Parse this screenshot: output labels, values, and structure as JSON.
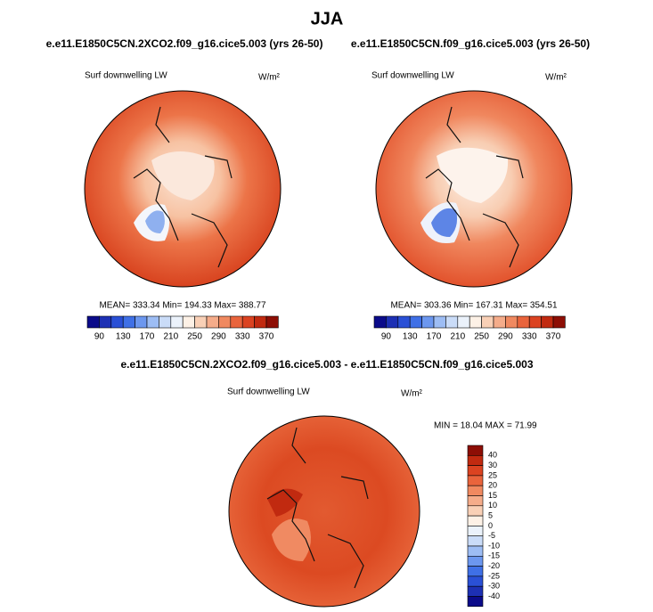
{
  "title": "JJA",
  "panels": [
    {
      "title": "e.e11.E1850C5CN.2XCO2.f09_g16.cice5.003 (yrs 26-50)",
      "variable": "Surf downwelling LW",
      "units": "W/m²",
      "stats": "MEAN= 333.34  Min= 194.33  Max= 388.77",
      "colorbar": {
        "labels": [
          "90",
          "130",
          "170",
          "210",
          "250",
          "290",
          "330",
          "370"
        ],
        "colors": [
          "#0b0b8a",
          "#1d30b4",
          "#2a50d6",
          "#3f70e6",
          "#6c97ef",
          "#9dbdf4",
          "#cadcf8",
          "#ebf2fb",
          "#fdf1e6",
          "#f9d0b6",
          "#f5ac8a",
          "#f08960",
          "#e9643c",
          "#db4321",
          "#c12a10",
          "#8d0e05"
        ]
      }
    },
    {
      "title": "e.e11.E1850C5CN.f09_g16.cice5.003 (yrs 26-50)",
      "variable": "Surf downwelling LW",
      "units": "W/m²",
      "stats": "MEAN= 303.36  Min= 167.31  Max= 354.51",
      "colorbar": {
        "labels": [
          "90",
          "130",
          "170",
          "210",
          "250",
          "290",
          "330",
          "370"
        ],
        "colors": [
          "#0b0b8a",
          "#1d30b4",
          "#2a50d6",
          "#3f70e6",
          "#6c97ef",
          "#9dbdf4",
          "#cadcf8",
          "#ebf2fb",
          "#fdf1e6",
          "#f9d0b6",
          "#f5ac8a",
          "#f08960",
          "#e9643c",
          "#db4321",
          "#c12a10",
          "#8d0e05"
        ]
      }
    },
    {
      "title": "e.e11.E1850C5CN.2XCO2.f09_g16.cice5.003 - e.e11.E1850C5CN.f09_g16.cice5.003",
      "variable": "Surf downwelling LW",
      "units": "W/m²",
      "stats": "MIN = 18.04 MAX = 71.99",
      "colorbar": {
        "labels": [
          "40",
          "30",
          "25",
          "20",
          "15",
          "10",
          "5",
          "0",
          "-5",
          "-10",
          "-15",
          "-20",
          "-25",
          "-30",
          "-40"
        ],
        "colors": [
          "#8d0e05",
          "#c12a10",
          "#db4321",
          "#e9643c",
          "#f08960",
          "#f5ac8a",
          "#f9d0b6",
          "#fdf1e6",
          "#ebf2fb",
          "#cadcf8",
          "#9dbdf4",
          "#6c97ef",
          "#3f70e6",
          "#2a50d6",
          "#1d30b4",
          "#0b0b8a"
        ]
      }
    }
  ]
}
